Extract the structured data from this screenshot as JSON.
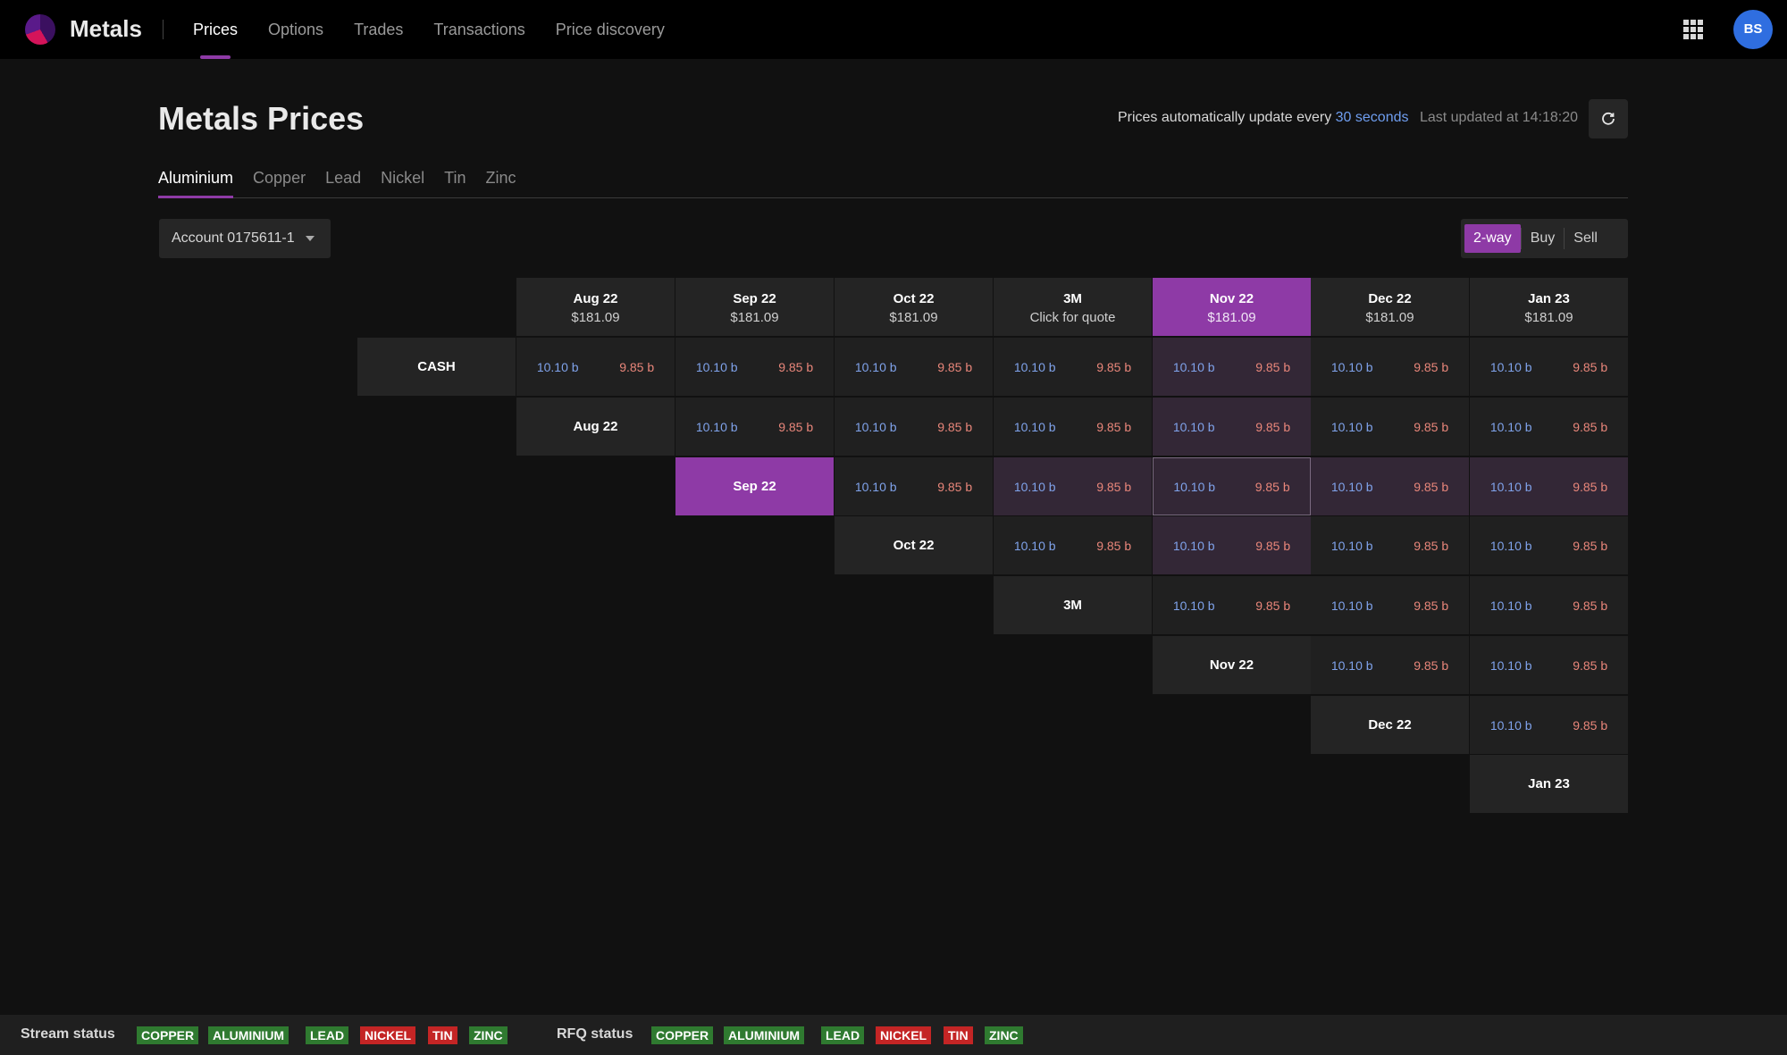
{
  "app": {
    "brand": "Metals",
    "nav": [
      "Prices",
      "Options",
      "Trades",
      "Transactions",
      "Price discovery"
    ],
    "active_nav": "Prices",
    "user_initials": "BS"
  },
  "page": {
    "title": "Metals Prices",
    "update_prefix": "Prices automatically update every",
    "update_interval": "30 seconds",
    "last_updated": "Last updated at 14:18:20"
  },
  "metal_tabs": [
    "Aluminium",
    "Copper",
    "Lead",
    "Nickel",
    "Tin",
    "Zinc"
  ],
  "active_metal": "Aluminium",
  "account": {
    "label": "Account 0175611-1"
  },
  "side_toggle": {
    "options": [
      "2-way",
      "Buy",
      "Sell"
    ],
    "active": "2-way"
  },
  "matrix": {
    "columns": [
      {
        "label": "Aug 22",
        "sub": "$181.09"
      },
      {
        "label": "Sep 22",
        "sub": "$181.09"
      },
      {
        "label": "Oct 22",
        "sub": "$181.09"
      },
      {
        "label": "3M",
        "sub": "Click for quote"
      },
      {
        "label": "Nov 22",
        "sub": "$181.09",
        "highlight": true
      },
      {
        "label": "Dec 22",
        "sub": "$181.09"
      },
      {
        "label": "Jan 23",
        "sub": "$181.09"
      }
    ],
    "rows": [
      "CASH",
      "Aug 22",
      "Sep 22",
      "Oct 22",
      "3M",
      "Nov 22",
      "Dec 22",
      "Jan 23"
    ],
    "highlight_row": "Sep 22",
    "selected_cell": {
      "row": "Sep 22",
      "col": "Nov 22"
    },
    "bid": "10.10 b",
    "ask": "9.85 b"
  },
  "status": {
    "stream_label": "Stream status",
    "rfq_label": "RFQ status",
    "stream": [
      {
        "name": "COPPER",
        "state": "ok"
      },
      {
        "name": "ALUMINIUM",
        "state": "ok"
      },
      {
        "name": "LEAD",
        "state": "ok"
      },
      {
        "name": "NICKEL",
        "state": "error"
      },
      {
        "name": "TIN",
        "state": "error"
      },
      {
        "name": "ZINC",
        "state": "ok"
      }
    ],
    "rfq": [
      {
        "name": "COPPER",
        "state": "ok"
      },
      {
        "name": "ALUMINIUM",
        "state": "ok"
      },
      {
        "name": "LEAD",
        "state": "ok"
      },
      {
        "name": "NICKEL",
        "state": "error"
      },
      {
        "name": "TIN",
        "state": "error"
      },
      {
        "name": "ZINC",
        "state": "ok"
      }
    ]
  },
  "colors": {
    "accent": "#8e3aa6",
    "bid": "#7fa2ea",
    "ask": "#e8867a",
    "status_ok": "#2f7a30",
    "status_error": "#c42525",
    "avatar": "#2f6ee0"
  }
}
